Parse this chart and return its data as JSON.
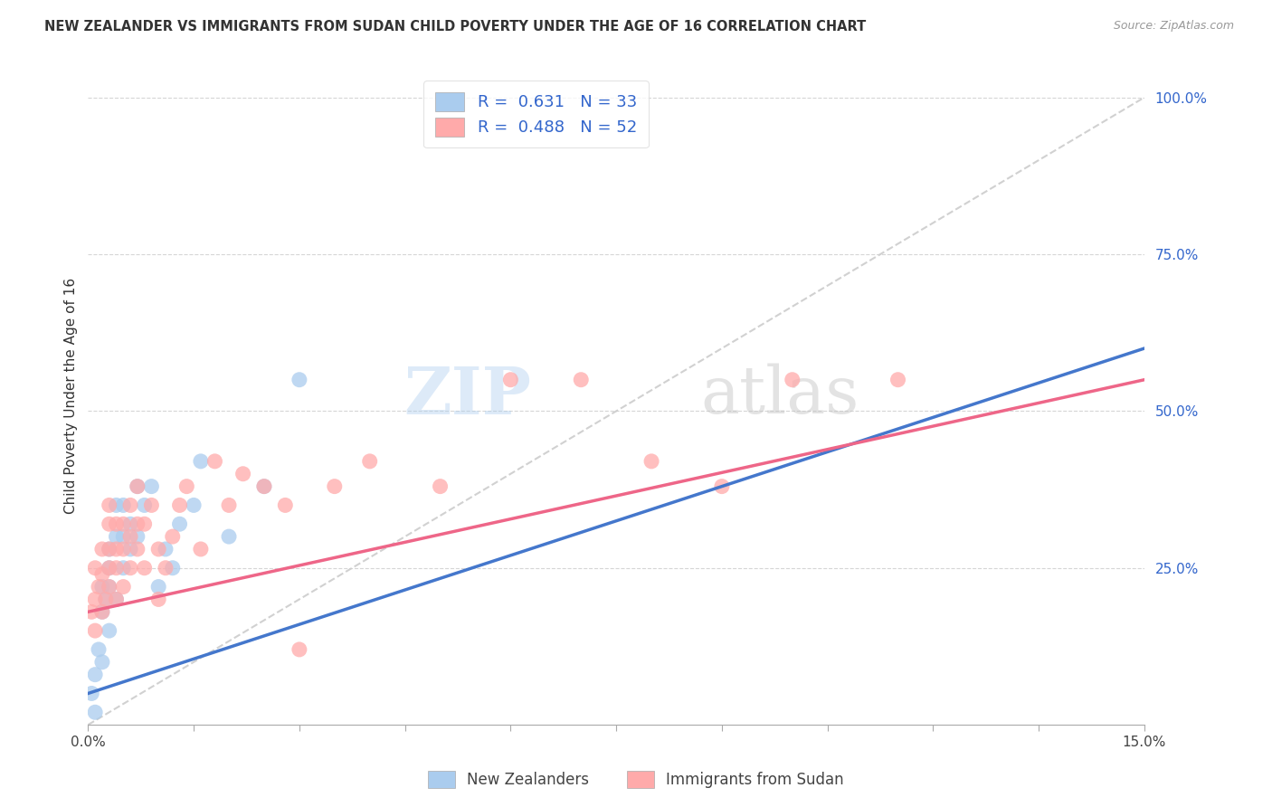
{
  "title": "NEW ZEALANDER VS IMMIGRANTS FROM SUDAN CHILD POVERTY UNDER THE AGE OF 16 CORRELATION CHART",
  "source": "Source: ZipAtlas.com",
  "ylabel": "Child Poverty Under the Age of 16",
  "xlim": [
    0.0,
    0.15
  ],
  "ylim": [
    0.0,
    1.05
  ],
  "background_color": "#ffffff",
  "grid_color": "#cccccc",
  "right_ytick_labels": [
    "100.0%",
    "75.0%",
    "50.0%",
    "25.0%"
  ],
  "right_ytick_values": [
    1.0,
    0.75,
    0.5,
    0.25
  ],
  "legend_color1": "#aaccee",
  "legend_color2": "#ffaaaa",
  "scatter_color_nz": "#aaccee",
  "scatter_color_sudan": "#ffaaaa",
  "line_color_nz": "#4477cc",
  "line_color_sudan": "#ee6688",
  "diagonal_color": "#cccccc",
  "watermark_zip": "ZIP",
  "watermark_atlas": "atlas",
  "nz_x": [
    0.0005,
    0.001,
    0.001,
    0.0015,
    0.002,
    0.002,
    0.002,
    0.0025,
    0.003,
    0.003,
    0.003,
    0.003,
    0.004,
    0.004,
    0.004,
    0.005,
    0.005,
    0.005,
    0.006,
    0.006,
    0.007,
    0.007,
    0.008,
    0.009,
    0.01,
    0.011,
    0.012,
    0.013,
    0.015,
    0.016,
    0.02,
    0.025,
    0.03
  ],
  "nz_y": [
    0.05,
    0.02,
    0.08,
    0.12,
    0.1,
    0.18,
    0.22,
    0.2,
    0.15,
    0.25,
    0.28,
    0.22,
    0.2,
    0.3,
    0.35,
    0.25,
    0.3,
    0.35,
    0.28,
    0.32,
    0.3,
    0.38,
    0.35,
    0.38,
    0.22,
    0.28,
    0.25,
    0.32,
    0.35,
    0.42,
    0.3,
    0.38,
    0.55
  ],
  "sudan_x": [
    0.0005,
    0.001,
    0.001,
    0.001,
    0.0015,
    0.002,
    0.002,
    0.002,
    0.0025,
    0.003,
    0.003,
    0.003,
    0.003,
    0.003,
    0.004,
    0.004,
    0.004,
    0.004,
    0.005,
    0.005,
    0.005,
    0.006,
    0.006,
    0.006,
    0.007,
    0.007,
    0.007,
    0.008,
    0.008,
    0.009,
    0.01,
    0.01,
    0.011,
    0.012,
    0.013,
    0.014,
    0.016,
    0.018,
    0.02,
    0.022,
    0.025,
    0.028,
    0.03,
    0.035,
    0.04,
    0.05,
    0.06,
    0.07,
    0.08,
    0.09,
    0.1,
    0.115
  ],
  "sudan_y": [
    0.18,
    0.15,
    0.2,
    0.25,
    0.22,
    0.18,
    0.24,
    0.28,
    0.2,
    0.22,
    0.25,
    0.28,
    0.32,
    0.35,
    0.2,
    0.25,
    0.28,
    0.32,
    0.22,
    0.28,
    0.32,
    0.25,
    0.3,
    0.35,
    0.28,
    0.32,
    0.38,
    0.25,
    0.32,
    0.35,
    0.2,
    0.28,
    0.25,
    0.3,
    0.35,
    0.38,
    0.28,
    0.42,
    0.35,
    0.4,
    0.38,
    0.35,
    0.12,
    0.38,
    0.42,
    0.38,
    0.55,
    0.55,
    0.42,
    0.38,
    0.55,
    0.55
  ],
  "nz_line_x": [
    0.0,
    0.15
  ],
  "nz_line_y": [
    0.05,
    0.6
  ],
  "sudan_line_x": [
    0.0,
    0.15
  ],
  "sudan_line_y": [
    0.18,
    0.55
  ]
}
